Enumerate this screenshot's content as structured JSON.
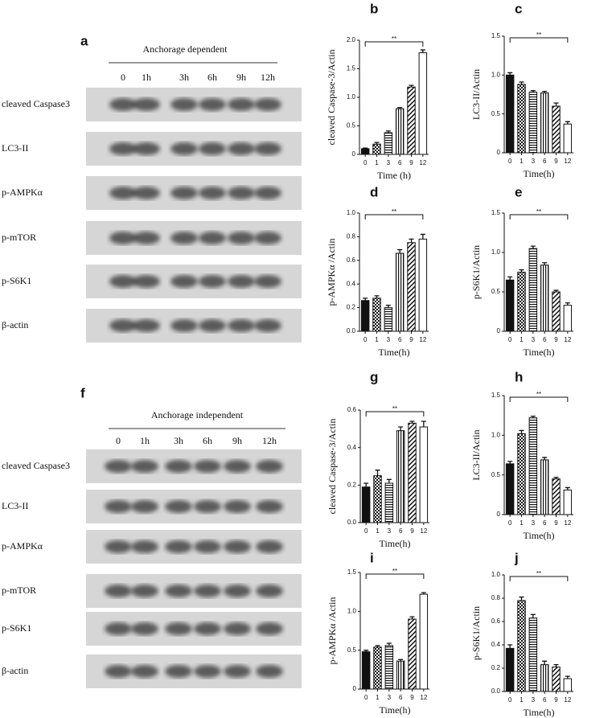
{
  "bar_patterns": [
    "solid",
    "checker",
    "horizontal",
    "vertical",
    "diagonal",
    "open"
  ],
  "blots": [
    {
      "panel": "a",
      "title": "Anchorage dependent",
      "lanes": [
        "0",
        "1h",
        "3h",
        "6h",
        "9h",
        "12h"
      ],
      "rows": [
        "cleaved Caspase3",
        "LC3-II",
        "p-AMPKα",
        "p-mTOR",
        "p-S6K1",
        "β-actin"
      ]
    },
    {
      "panel": "f",
      "title": "Anchorage independent",
      "lanes": [
        "0",
        "1h",
        "3h",
        "6h",
        "9h",
        "12h"
      ],
      "rows": [
        "cleaved Caspase3",
        "LC3-II",
        "p-AMPKα",
        "p-mTOR",
        "p-S6K1",
        "β-actin"
      ]
    }
  ],
  "chart_data": [
    {
      "type": "bar",
      "panel": "b",
      "ylabel": "cleaved Caspase-3/Actin",
      "xlabel": "Time  (h)",
      "annotation": "**",
      "categories": [
        "0",
        "1",
        "3",
        "6",
        "9",
        "12"
      ],
      "values": [
        0.1,
        0.18,
        0.38,
        0.8,
        1.18,
        1.78
      ],
      "errors": [
        0.01,
        0.03,
        0.03,
        0.02,
        0.03,
        0.05
      ],
      "ylim": [
        0,
        2
      ],
      "yticks": [
        0,
        0.5,
        {
          "value": 1,
          "label": "1.0"
        },
        1.5,
        {
          "value": 2,
          "label": "2.0"
        }
      ]
    },
    {
      "type": "bar",
      "panel": "c",
      "ylabel": "LC3-II/Actin",
      "xlabel": "Time(h)",
      "annotation": "**",
      "categories": [
        "0",
        "1",
        "3",
        "6",
        "9",
        "12"
      ],
      "values": [
        1.0,
        0.88,
        0.78,
        0.77,
        0.6,
        0.37
      ],
      "errors": [
        0.03,
        0.03,
        0.02,
        0.02,
        0.04,
        0.03
      ],
      "ylim": [
        0,
        1.5
      ],
      "yticks": [
        0,
        0.5,
        {
          "value": 1,
          "label": "1.0"
        },
        1.5
      ]
    },
    {
      "type": "bar",
      "panel": "d",
      "ylabel": "p-AMPKα /Actin",
      "xlabel": "Time(h)",
      "annotation": "**",
      "categories": [
        "0",
        "1",
        "3",
        "6",
        "9",
        "12"
      ],
      "values": [
        0.26,
        0.28,
        0.2,
        0.66,
        0.75,
        0.78
      ],
      "errors": [
        0.02,
        0.02,
        0.02,
        0.03,
        0.03,
        0.04
      ],
      "ylim": [
        0,
        1
      ],
      "yticks": [
        {
          "value": 0,
          "label": "0.0"
        },
        0.2,
        0.4,
        0.6,
        0.8,
        {
          "value": 1,
          "label": "1.0"
        }
      ]
    },
    {
      "type": "bar",
      "panel": "e",
      "ylabel": "p-S6K1/Actin",
      "xlabel": "Time(h)",
      "annotation": "**",
      "categories": [
        "0",
        "1",
        "3",
        "6",
        "9",
        "12"
      ],
      "values": [
        0.65,
        0.75,
        1.05,
        0.84,
        0.5,
        0.33
      ],
      "errors": [
        0.04,
        0.03,
        0.03,
        0.03,
        0.02,
        0.03
      ],
      "ylim": [
        0,
        1.5
      ],
      "yticks": [
        0,
        0.5,
        {
          "value": 1,
          "label": "1.0"
        },
        1.5
      ]
    },
    {
      "type": "bar",
      "panel": "g",
      "ylabel": "cleaved Caspase-3/Actin",
      "xlabel": "Time(h)",
      "annotation": "**",
      "categories": [
        "0",
        "1",
        "3",
        "6",
        "9",
        "12"
      ],
      "values": [
        0.19,
        0.25,
        0.21,
        0.49,
        0.53,
        0.51
      ],
      "errors": [
        0.02,
        0.03,
        0.02,
        0.02,
        0.01,
        0.03
      ],
      "ylim": [
        0,
        0.6
      ],
      "yticks": [
        {
          "value": 0,
          "label": "0.0"
        },
        0.2,
        0.4,
        0.6
      ]
    },
    {
      "type": "bar",
      "panel": "h",
      "ylabel": "LC3-II/Actin",
      "xlabel": "Time(h)",
      "annotation": "**",
      "categories": [
        "0",
        "1",
        "3",
        "6",
        "9",
        "12"
      ],
      "values": [
        0.64,
        1.02,
        1.22,
        0.69,
        0.45,
        0.31
      ],
      "errors": [
        0.03,
        0.04,
        0.02,
        0.03,
        0.02,
        0.03
      ],
      "ylim": [
        0,
        1.5
      ],
      "yticks": [
        0,
        0.5,
        {
          "value": 1,
          "label": "1.0"
        },
        1.5
      ]
    },
    {
      "type": "bar",
      "panel": "i",
      "ylabel": "p-AMPKα /Actin",
      "xlabel": "Time(h)",
      "annotation": "**",
      "categories": [
        "0",
        "1",
        "3",
        "6",
        "9",
        "12"
      ],
      "values": [
        0.48,
        0.54,
        0.56,
        0.36,
        0.9,
        1.22
      ],
      "errors": [
        0.02,
        0.02,
        0.03,
        0.02,
        0.03,
        0.02
      ],
      "ylim": [
        0,
        1.5
      ],
      "yticks": [
        0,
        0.5,
        {
          "value": 1,
          "label": "1.0"
        },
        1.5
      ]
    },
    {
      "type": "bar",
      "panel": "j",
      "ylabel": "p-S6K1/Actin",
      "xlabel": "Time(h)",
      "annotation": "**",
      "categories": [
        "0",
        "1",
        "3",
        "6",
        "9",
        "12"
      ],
      "values": [
        0.37,
        0.78,
        0.63,
        0.23,
        0.21,
        0.11
      ],
      "errors": [
        0.03,
        0.03,
        0.03,
        0.03,
        0.02,
        0.02
      ],
      "ylim": [
        0,
        1
      ],
      "yticks": [
        {
          "value": 0,
          "label": "0.0"
        },
        0.2,
        0.4,
        0.6,
        0.8,
        {
          "value": 1,
          "label": "1.0"
        }
      ]
    }
  ]
}
